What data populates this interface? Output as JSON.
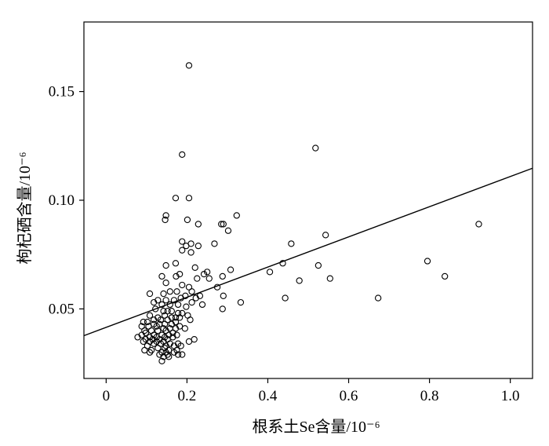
{
  "chart_data": {
    "type": "scatter",
    "xlabel": "根系土Se含量/10⁻⁶",
    "ylabel": "枸杞硒含量/10⁻⁶",
    "xlim": [
      -0.055,
      1.055
    ],
    "ylim": [
      0.018,
      0.182
    ],
    "x_ticks": [
      0,
      0.2,
      0.4,
      0.6,
      0.8,
      1.0
    ],
    "x_tick_labels": [
      "0",
      "0.2",
      "0.4",
      "0.6",
      "0.8",
      "1.0"
    ],
    "y_ticks": [
      0.05,
      0.1,
      0.15
    ],
    "y_tick_labels": [
      "0.05",
      "0.10",
      "0.15"
    ],
    "grid": false,
    "fit_line": {
      "intercept": 0.0415,
      "slope": 0.0694
    },
    "series": [
      {
        "points": [
          [
            0.205,
            0.162
          ],
          [
            0.518,
            0.124
          ],
          [
            0.188,
            0.121
          ],
          [
            0.172,
            0.101
          ],
          [
            0.205,
            0.101
          ],
          [
            0.148,
            0.093
          ],
          [
            0.146,
            0.091
          ],
          [
            0.201,
            0.091
          ],
          [
            0.323,
            0.093
          ],
          [
            0.228,
            0.089
          ],
          [
            0.285,
            0.089
          ],
          [
            0.29,
            0.089
          ],
          [
            0.922,
            0.089
          ],
          [
            0.302,
            0.086
          ],
          [
            0.543,
            0.084
          ],
          [
            0.188,
            0.081
          ],
          [
            0.458,
            0.08
          ],
          [
            0.21,
            0.08
          ],
          [
            0.268,
            0.08
          ],
          [
            0.228,
            0.079
          ],
          [
            0.198,
            0.079
          ],
          [
            0.188,
            0.077
          ],
          [
            0.21,
            0.076
          ],
          [
            0.437,
            0.071
          ],
          [
            0.795,
            0.072
          ],
          [
            0.172,
            0.071
          ],
          [
            0.148,
            0.07
          ],
          [
            0.22,
            0.069
          ],
          [
            0.525,
            0.07
          ],
          [
            0.308,
            0.068
          ],
          [
            0.405,
            0.067
          ],
          [
            0.25,
            0.067
          ],
          [
            0.242,
            0.066
          ],
          [
            0.182,
            0.066
          ],
          [
            0.173,
            0.065
          ],
          [
            0.138,
            0.065
          ],
          [
            0.288,
            0.065
          ],
          [
            0.838,
            0.065
          ],
          [
            0.478,
            0.063
          ],
          [
            0.554,
            0.064
          ],
          [
            0.225,
            0.064
          ],
          [
            0.255,
            0.064
          ],
          [
            0.148,
            0.062
          ],
          [
            0.188,
            0.061
          ],
          [
            0.205,
            0.06
          ],
          [
            0.275,
            0.06
          ],
          [
            0.158,
            0.058
          ],
          [
            0.142,
            0.057
          ],
          [
            0.175,
            0.058
          ],
          [
            0.212,
            0.058
          ],
          [
            0.108,
            0.057
          ],
          [
            0.196,
            0.056
          ],
          [
            0.232,
            0.056
          ],
          [
            0.29,
            0.056
          ],
          [
            0.185,
            0.055
          ],
          [
            0.222,
            0.055
          ],
          [
            0.443,
            0.055
          ],
          [
            0.673,
            0.055
          ],
          [
            0.128,
            0.054
          ],
          [
            0.148,
            0.054
          ],
          [
            0.168,
            0.054
          ],
          [
            0.212,
            0.053
          ],
          [
            0.333,
            0.053
          ],
          [
            0.118,
            0.053
          ],
          [
            0.138,
            0.052
          ],
          [
            0.158,
            0.052
          ],
          [
            0.178,
            0.052
          ],
          [
            0.198,
            0.051
          ],
          [
            0.238,
            0.052
          ],
          [
            0.288,
            0.05
          ],
          [
            0.122,
            0.05
          ],
          [
            0.142,
            0.049
          ],
          [
            0.152,
            0.049
          ],
          [
            0.162,
            0.049
          ],
          [
            0.178,
            0.048
          ],
          [
            0.188,
            0.048
          ],
          [
            0.202,
            0.047
          ],
          [
            0.108,
            0.047
          ],
          [
            0.128,
            0.046
          ],
          [
            0.145,
            0.047
          ],
          [
            0.162,
            0.046
          ],
          [
            0.172,
            0.046
          ],
          [
            0.182,
            0.046
          ],
          [
            0.118,
            0.045
          ],
          [
            0.135,
            0.045
          ],
          [
            0.152,
            0.045
          ],
          [
            0.172,
            0.044
          ],
          [
            0.208,
            0.045
          ],
          [
            0.092,
            0.044
          ],
          [
            0.102,
            0.044
          ],
          [
            0.118,
            0.043
          ],
          [
            0.132,
            0.043
          ],
          [
            0.145,
            0.043
          ],
          [
            0.162,
            0.043
          ],
          [
            0.182,
            0.042
          ],
          [
            0.088,
            0.042
          ],
          [
            0.105,
            0.042
          ],
          [
            0.125,
            0.042
          ],
          [
            0.142,
            0.041
          ],
          [
            0.158,
            0.041
          ],
          [
            0.172,
            0.041
          ],
          [
            0.195,
            0.041
          ],
          [
            0.095,
            0.04
          ],
          [
            0.112,
            0.04
          ],
          [
            0.128,
            0.04
          ],
          [
            0.148,
            0.04
          ],
          [
            0.165,
            0.039
          ],
          [
            0.098,
            0.039
          ],
          [
            0.118,
            0.038
          ],
          [
            0.138,
            0.038
          ],
          [
            0.155,
            0.038
          ],
          [
            0.175,
            0.038
          ],
          [
            0.088,
            0.038
          ],
          [
            0.108,
            0.037
          ],
          [
            0.125,
            0.037
          ],
          [
            0.145,
            0.037
          ],
          [
            0.165,
            0.037
          ],
          [
            0.078,
            0.037
          ],
          [
            0.098,
            0.036
          ],
          [
            0.115,
            0.036
          ],
          [
            0.132,
            0.036
          ],
          [
            0.152,
            0.036
          ],
          [
            0.218,
            0.036
          ],
          [
            0.205,
            0.035
          ],
          [
            0.108,
            0.035
          ],
          [
            0.125,
            0.035
          ],
          [
            0.142,
            0.035
          ],
          [
            0.092,
            0.035
          ],
          [
            0.158,
            0.034
          ],
          [
            0.178,
            0.034
          ],
          [
            0.118,
            0.034
          ],
          [
            0.135,
            0.034
          ],
          [
            0.148,
            0.033
          ],
          [
            0.102,
            0.033
          ],
          [
            0.168,
            0.033
          ],
          [
            0.185,
            0.033
          ],
          [
            0.128,
            0.032
          ],
          [
            0.145,
            0.032
          ],
          [
            0.095,
            0.031
          ],
          [
            0.112,
            0.031
          ],
          [
            0.155,
            0.031
          ],
          [
            0.175,
            0.031
          ],
          [
            0.138,
            0.03
          ],
          [
            0.148,
            0.03
          ],
          [
            0.168,
            0.03
          ],
          [
            0.108,
            0.03
          ],
          [
            0.132,
            0.029
          ],
          [
            0.152,
            0.029
          ],
          [
            0.178,
            0.029
          ],
          [
            0.188,
            0.029
          ],
          [
            0.142,
            0.028
          ],
          [
            0.155,
            0.028
          ],
          [
            0.138,
            0.026
          ]
        ]
      }
    ]
  }
}
